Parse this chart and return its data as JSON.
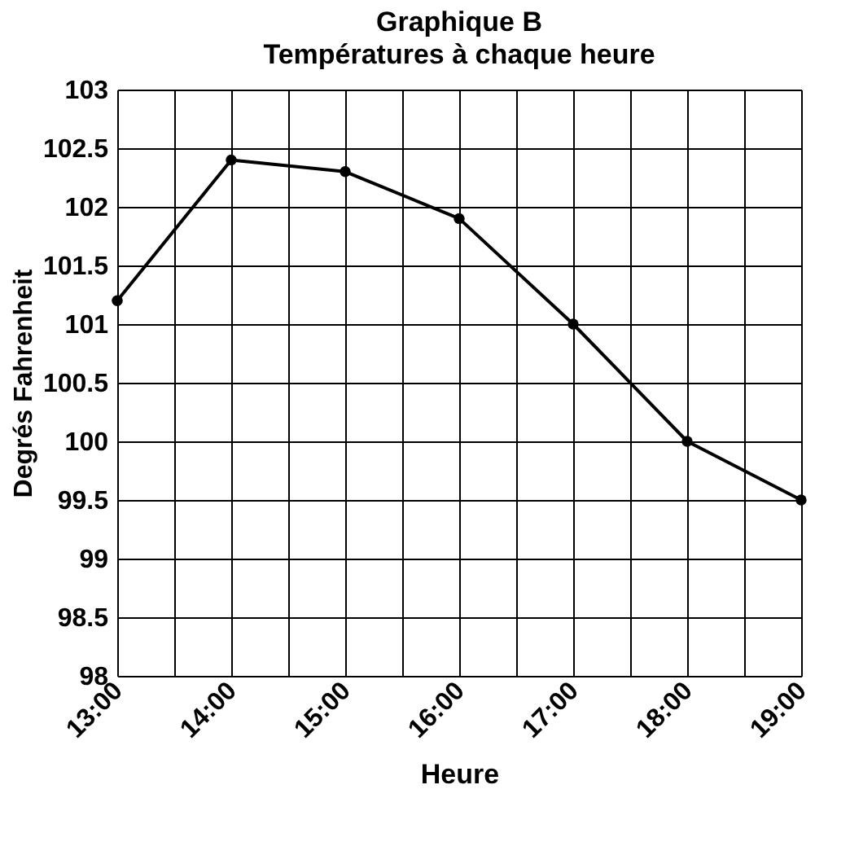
{
  "chart_data": {
    "type": "line",
    "title": "Graphique B",
    "subtitle": "Températures à chaque heure",
    "xlabel": "Heure",
    "ylabel": "Degrés Fahrenheit",
    "x": [
      13,
      14,
      15,
      16,
      17,
      18,
      19
    ],
    "series": [
      {
        "color": "#000000",
        "values": [
          101.2,
          102.4,
          102.3,
          101.9,
          101.0,
          100.0,
          99.5
        ]
      }
    ],
    "xlim": [
      13,
      19
    ],
    "xticks": [
      {
        "value": 13,
        "label": "13:00"
      },
      {
        "value": 13.5,
        "label": null
      },
      {
        "value": 14,
        "label": "14:00"
      },
      {
        "value": 14.5,
        "label": null
      },
      {
        "value": 15,
        "label": "15:00"
      },
      {
        "value": 15.5,
        "label": null
      },
      {
        "value": 16,
        "label": "16:00"
      },
      {
        "value": 16.5,
        "label": null
      },
      {
        "value": 17,
        "label": "17:00"
      },
      {
        "value": 17.5,
        "label": null
      },
      {
        "value": 18,
        "label": "18:00"
      },
      {
        "value": 18.5,
        "label": null
      },
      {
        "value": 19,
        "label": "19:00"
      }
    ],
    "ylim": [
      98,
      103
    ],
    "yticks": [
      98,
      98.5,
      99,
      99.5,
      100,
      100.5,
      101,
      101.5,
      102,
      102.5,
      103
    ],
    "grid": true,
    "marker": "circle",
    "line_style": "solid"
  }
}
